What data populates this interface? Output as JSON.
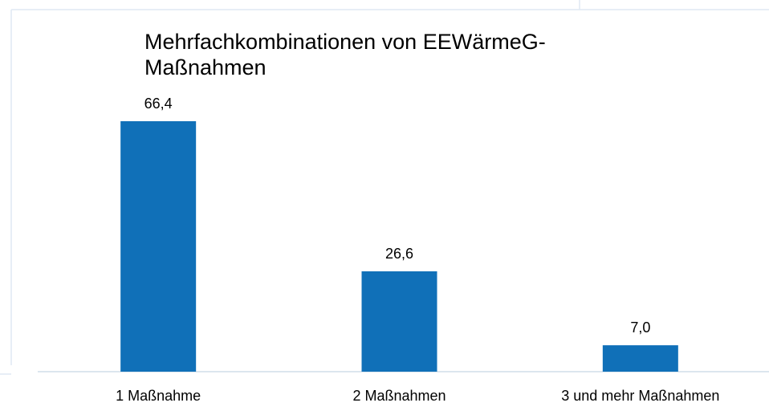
{
  "chart_data": {
    "type": "bar",
    "title": "Mehrfachkombinationen von EEWärmeG-Maßnahmen",
    "categories": [
      "1 Maßnahme",
      "2 Maßnahmen",
      "3 und mehr Maßnahmen"
    ],
    "values": [
      66.4,
      26.6,
      7.0
    ],
    "value_labels": [
      "66,4",
      "26,6",
      "7,0"
    ],
    "color": "#1070b8"
  }
}
